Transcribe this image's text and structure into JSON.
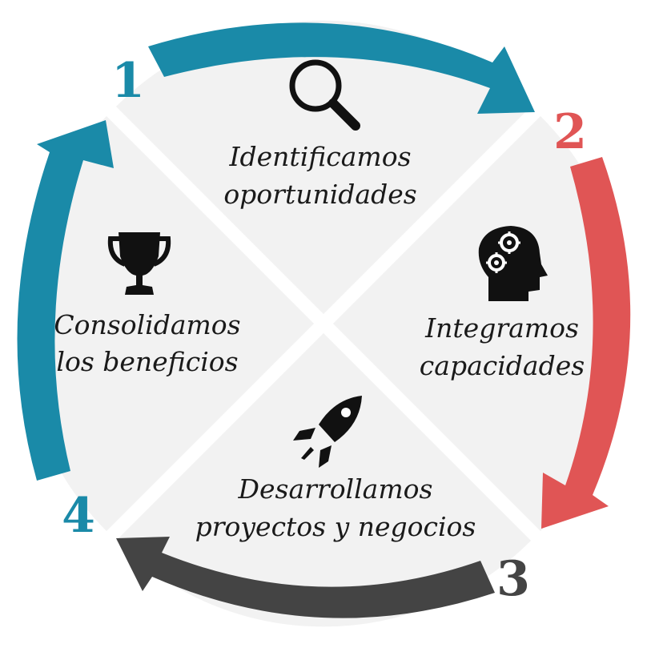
{
  "colors": {
    "teal": "#1a8aa8",
    "red": "#e05555",
    "dark": "#444444",
    "quadrant": "#f2f2f2",
    "icon": "#111111"
  },
  "steps": [
    {
      "number": "1",
      "line1": "Identificamos",
      "line2": "oportunidades",
      "icon": "magnifier-icon"
    },
    {
      "number": "2",
      "line1": "Integramos",
      "line2": "capacidades",
      "icon": "head-gears-icon"
    },
    {
      "number": "3",
      "line1": "Desarrollamos",
      "line2": "proyectos y negocios",
      "icon": "rocket-icon"
    },
    {
      "number": "4",
      "line1": "Consolidamos",
      "line2": "los beneficios",
      "icon": "trophy-icon"
    }
  ]
}
